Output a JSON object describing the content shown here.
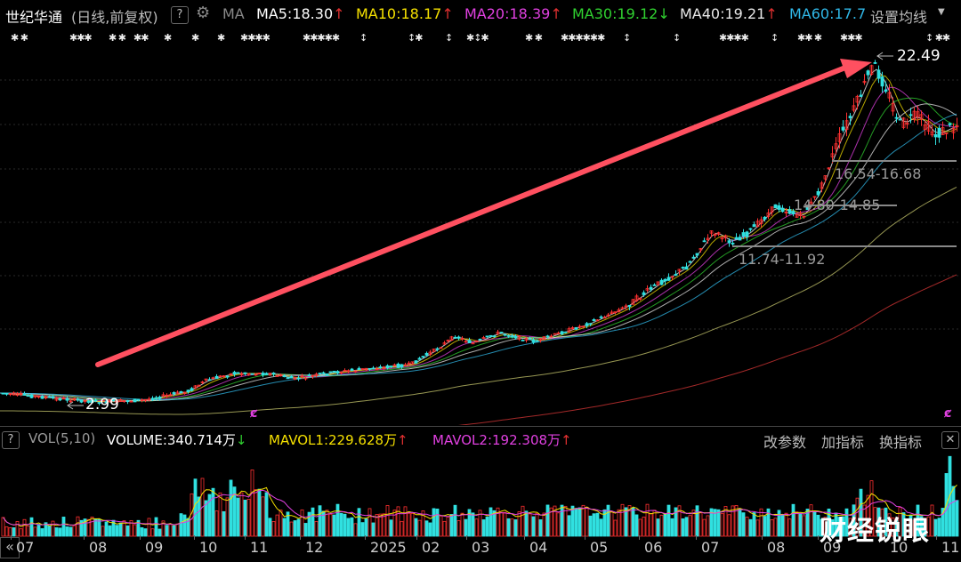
{
  "header": {
    "stock_name": "世纪华通",
    "period": "(日线,前复权)",
    "help": "?",
    "indicator": "MA",
    "ma": [
      {
        "label": "MA5:18.30",
        "arrow": "↑",
        "color": "#ffffff"
      },
      {
        "label": "MA10:18.17",
        "arrow": "↑",
        "color": "#f5e000"
      },
      {
        "label": "MA20:18.39",
        "arrow": "↑",
        "color": "#e040e0"
      },
      {
        "label": "MA30:19.12",
        "arrow": "↓",
        "color": "#30d030"
      },
      {
        "label": "MA40:19.21",
        "arrow": "↑",
        "color": "#e8e8e8"
      },
      {
        "label": "MA60:17.7",
        "arrow": "",
        "color": "#30b8e8"
      }
    ],
    "settings": "设置均线"
  },
  "price_chart": {
    "high_label": "22.49",
    "low_label": "2.99",
    "levels": [
      {
        "label": "16.54-16.68"
      },
      {
        "label": "14.80-14.85"
      },
      {
        "label": "11.74-11.92"
      }
    ]
  },
  "volume": {
    "help": "?",
    "title": "VOL(5,10)",
    "volume_label": "VOLUME:340.714万",
    "volume_arrow": "↓",
    "mavol1": "MAVOL1:229.628万",
    "mavol1_arrow": "↑",
    "mavol2": "MAVOL2:192.308万",
    "mavol2_arrow": "↑",
    "buttons": [
      "改参数",
      "加指标",
      "换指标"
    ]
  },
  "x_axis": [
    "07",
    "08",
    "09",
    "10",
    "11",
    "12",
    "2025",
    "02",
    "03",
    "04",
    "05",
    "06",
    "07",
    "08",
    "09",
    "10",
    "11"
  ],
  "scroll_left": "«",
  "watermark": "财经锐眼",
  "colors": {
    "up": "#ff3030",
    "down": "#30e0e0",
    "arrow": "#ff5060"
  }
}
